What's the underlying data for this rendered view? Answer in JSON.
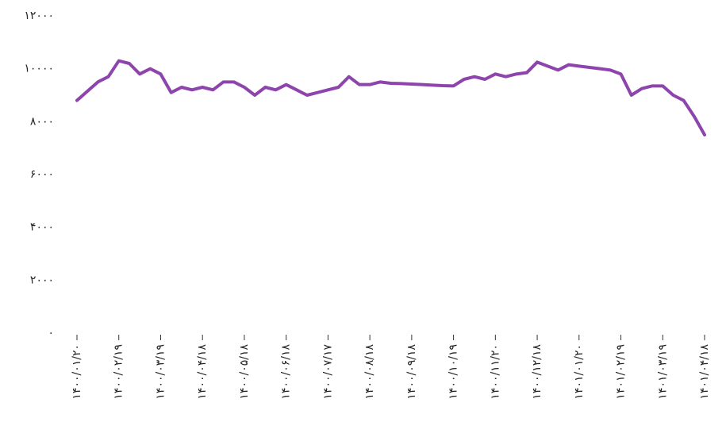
{
  "chart_data": {
    "type": "line",
    "categories": [
      "۱۴۰۰/۰۱/۲۰",
      null,
      null,
      null,
      "۱۴۰۰/۰۲/۱۹",
      null,
      null,
      null,
      "۱۴۰۰/۰۳/۱۹",
      null,
      null,
      null,
      "۱۴۰۰/۰۴/۱۸",
      null,
      null,
      null,
      "۱۴۰۰/۰۵/۱۸",
      null,
      null,
      null,
      "۱۴۰۰/۰۶/۱۸",
      null,
      null,
      null,
      "۱۴۰۰/۰۷/۱۷",
      null,
      null,
      null,
      "۱۴۰۰/۰۸/۱۸",
      null,
      null,
      null,
      "۱۴۰۰/۰۹/۱۸",
      null,
      null,
      null,
      "۱۴۰۰/۱۰/۱۹",
      null,
      null,
      null,
      "۱۴۰۰/۱۱/۲۰",
      null,
      null,
      null,
      "۱۴۰۰/۱۲/۱۸",
      null,
      null,
      null,
      "۱۴۰۱/۰۱/۲۰",
      null,
      null,
      null,
      "۱۴۰۱/۰۲/۱۹",
      null,
      null,
      null,
      "۱۴۰۱/۰۳/۱۹",
      null,
      null,
      null,
      "۱۴۰۱/۰۴/۱۸"
    ],
    "series": [
      {
        "color": "#8e44ad",
        "values": [
          8800,
          9150,
          9500,
          9700,
          10300,
          10200,
          9800,
          10000,
          9800,
          9100,
          9300,
          9200,
          9300,
          9200,
          9500,
          9500,
          9300,
          9000,
          9300,
          9200,
          9400,
          9200,
          9000,
          9100,
          9200,
          9300,
          9700,
          9400,
          9400,
          9500,
          9450,
          9440,
          9420,
          9400,
          9380,
          9360,
          9350,
          9600,
          9700,
          9600,
          9800,
          9700,
          9800,
          9850,
          10250,
          10100,
          9950,
          10150,
          10100,
          10050,
          10000,
          9950,
          9800,
          9000,
          9250,
          9350,
          9350,
          9000,
          8800,
          8200,
          7500
        ]
      }
    ],
    "ylim": [
      0,
      12000
    ],
    "yticks": [
      {
        "value": 0,
        "label": "۰"
      },
      {
        "value": 2000,
        "label": "۲۰۰۰"
      },
      {
        "value": 4000,
        "label": "۴۰۰۰"
      },
      {
        "value": 6000,
        "label": "۶۰۰۰"
      },
      {
        "value": 8000,
        "label": "۸۰۰۰"
      },
      {
        "value": 10000,
        "label": "۱۰۰۰۰"
      },
      {
        "value": 12000,
        "label": "۱۲۰۰۰"
      }
    ]
  }
}
